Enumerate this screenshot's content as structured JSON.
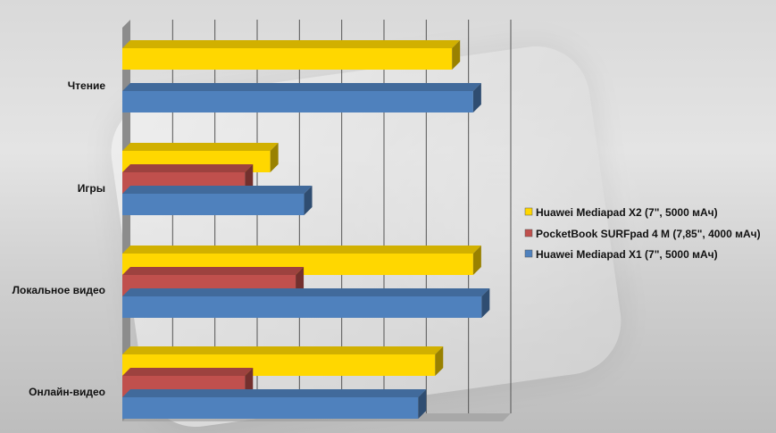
{
  "chart_data": {
    "type": "bar",
    "orientation": "horizontal",
    "categories": [
      "Чтение",
      "Игры",
      "Локальное видео",
      "Онлайн-видео"
    ],
    "series": [
      {
        "name": "Huawei Mediapad X2 (7\", 5000 мАч)",
        "color": "#FFD700",
        "values": [
          7.8,
          3.5,
          8.3,
          7.4
        ]
      },
      {
        "name": "PocketBook SURFpad 4 M (7,85\", 4000 мАч)",
        "color": "#C0504D",
        "values": [
          null,
          2.9,
          4.1,
          2.9
        ]
      },
      {
        "name": "Huawei Mediapad X1 (7\", 5000 мАч)",
        "color": "#4F81BD",
        "values": [
          8.3,
          4.3,
          8.5,
          7.0
        ]
      }
    ],
    "xlim": [
      0,
      9
    ],
    "grid": true,
    "legend_position": "right"
  }
}
